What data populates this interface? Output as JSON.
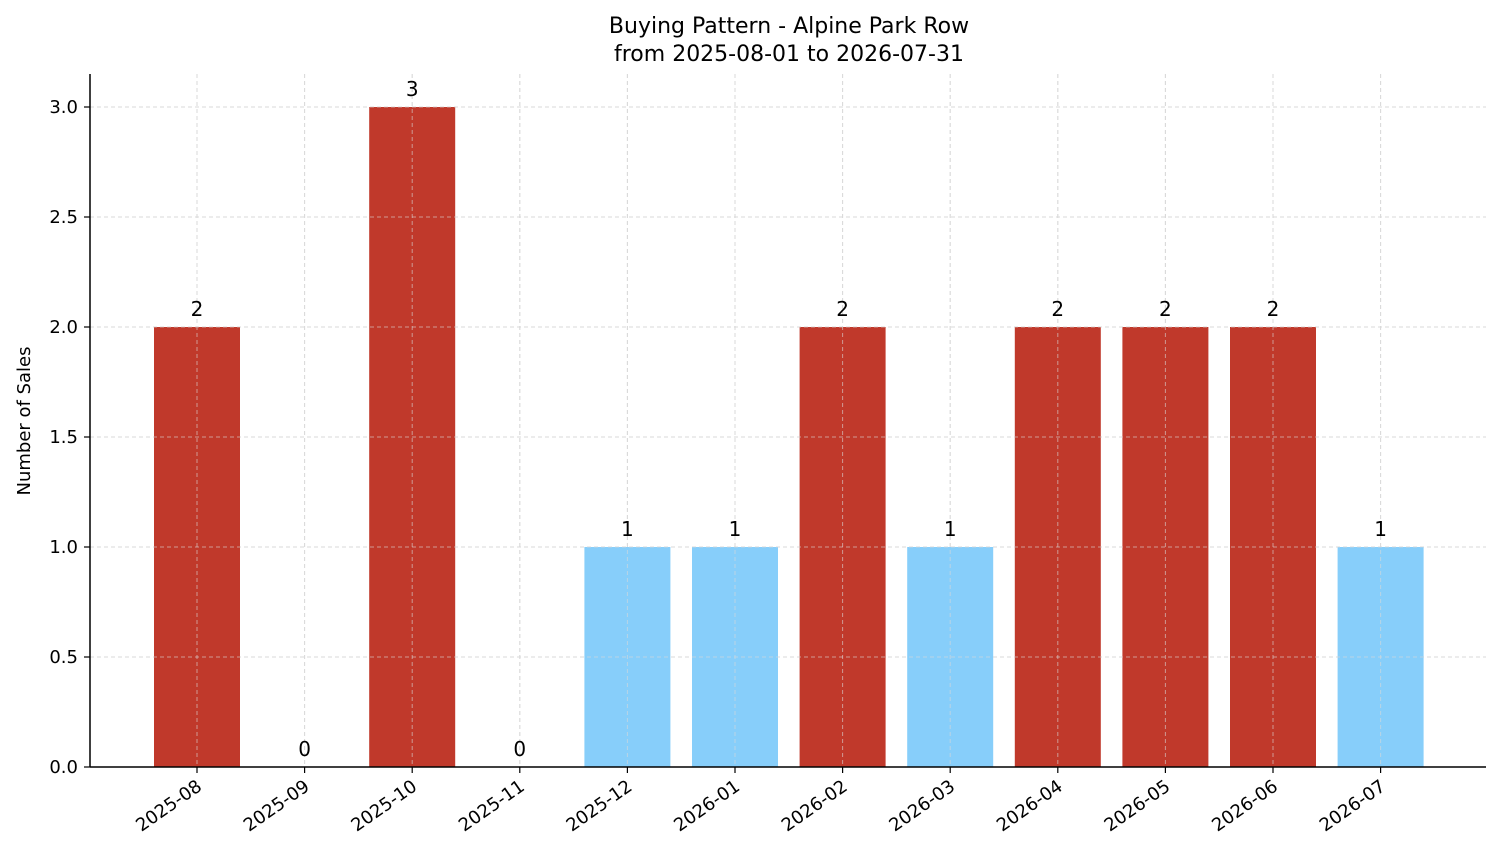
{
  "chart_data": {
    "type": "bar",
    "title": "Buying Pattern - Alpine Park Row",
    "subtitle": "from 2025-08-01 to 2026-07-31",
    "xlabel": "",
    "ylabel": "Number of Sales",
    "categories": [
      "2025-08",
      "2025-09",
      "2025-10",
      "2025-11",
      "2025-12",
      "2026-01",
      "2026-02",
      "2026-03",
      "2026-04",
      "2026-05",
      "2026-06",
      "2026-07"
    ],
    "values": [
      2,
      0,
      3,
      0,
      1,
      1,
      2,
      1,
      2,
      2,
      2,
      1
    ],
    "bar_colors": [
      "#c0392b",
      "#c0392b",
      "#c0392b",
      "#c0392b",
      "#87cefa",
      "#87cefa",
      "#c0392b",
      "#87cefa",
      "#c0392b",
      "#c0392b",
      "#c0392b",
      "#87cefa"
    ],
    "data_labels": [
      "2",
      "0",
      "3",
      "0",
      "1",
      "1",
      "2",
      "1",
      "2",
      "2",
      "2",
      "1"
    ],
    "y_ticks": [
      0.0,
      0.5,
      1.0,
      1.5,
      2.0,
      2.5,
      3.0
    ],
    "y_tick_labels": [
      "0.0",
      "0.5",
      "1.0",
      "1.5",
      "2.0",
      "2.5",
      "3.0"
    ],
    "ylim": [
      0,
      3.15
    ],
    "grid": true,
    "legend": "none",
    "colors": {
      "high": "#c0392b",
      "low": "#87cefa",
      "grid": "#d9d9d9",
      "axis": "#000000"
    }
  }
}
